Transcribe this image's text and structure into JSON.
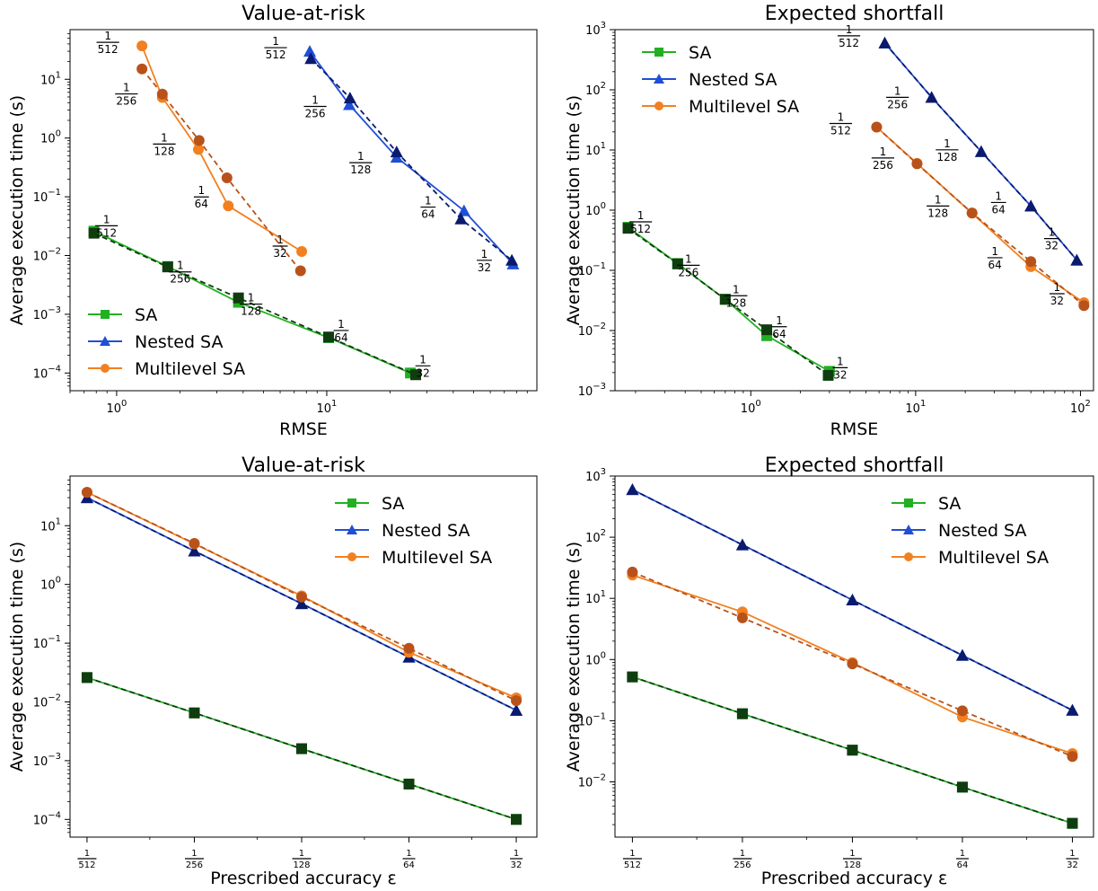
{
  "colors": {
    "SA": "#22b022",
    "SA_dark": "#0f3d0f",
    "Nested": "#1f4fd6",
    "Nested_dark": "#0a1a6e",
    "Multilevel": "#f28020",
    "Multilevel_dark": "#b8521a"
  },
  "chart_data": [
    {
      "type": "scatter",
      "title": "Value-at-risk",
      "xlabel": "RMSE",
      "ylabel": "Average execution time (s)",
      "xscale": "log",
      "yscale": "log",
      "xlim": [
        0.6,
        100
      ],
      "ylim": [
        5e-05,
        70
      ],
      "xticks": [
        {
          "v": 1,
          "label": "10",
          "exp": "0"
        },
        {
          "v": 10,
          "label": "10",
          "exp": "1"
        }
      ],
      "yticks": [
        {
          "v": 0.0001,
          "label": "10",
          "exp": "−4"
        },
        {
          "v": 0.001,
          "label": "10",
          "exp": "−3"
        },
        {
          "v": 0.01,
          "label": "10",
          "exp": "−2"
        },
        {
          "v": 0.1,
          "label": "10",
          "exp": "−1"
        },
        {
          "v": 1,
          "label": "10",
          "exp": "0"
        },
        {
          "v": 10,
          "label": "10",
          "exp": "1"
        }
      ],
      "legend": {
        "position": "lower-left",
        "entries": [
          "SA",
          "Nested SA",
          "Multilevel SA"
        ]
      },
      "series": [
        {
          "name": "SA",
          "color_key": "SA",
          "marker": "square",
          "dashed": false,
          "x": [
            0.78,
            1.75,
            3.8,
            10.2,
            25
          ],
          "y": [
            0.026,
            0.0065,
            0.0016,
            0.0004,
            0.0001
          ]
        },
        {
          "color_key": "SA_dark",
          "marker": "square",
          "dashed": true,
          "x": [
            0.78,
            1.75,
            3.8,
            10.2,
            26.5
          ],
          "y": [
            0.024,
            0.0064,
            0.0019,
            0.00041,
            9.34e-05
          ]
        },
        {
          "name": "Nested SA",
          "color_key": "Nested",
          "marker": "triangle",
          "dashed": false,
          "x": [
            8.3,
            12.8,
            21.5,
            45,
            77
          ],
          "y": [
            30,
            3.7,
            0.47,
            0.058,
            0.0072
          ]
        },
        {
          "color_key": "Nested_dark",
          "marker": "triangle",
          "dashed": true,
          "x": [
            8.4,
            12.9,
            21.5,
            43.5,
            76
          ],
          "y": [
            22.5,
            4.8,
            0.58,
            0.042,
            0.0083
          ]
        },
        {
          "name": "Multilevel SA",
          "color_key": "Multilevel",
          "marker": "circle",
          "dashed": false,
          "x": [
            1.32,
            1.65,
            2.45,
            3.4,
            7.6
          ],
          "y": [
            37,
            4.9,
            0.64,
            0.07,
            0.0117
          ]
        },
        {
          "color_key": "Multilevel_dark",
          "marker": "circle",
          "dashed": true,
          "x": [
            1.32,
            1.65,
            2.47,
            3.35,
            7.5
          ],
          "y": [
            15,
            5.6,
            0.91,
            0.21,
            0.0055
          ]
        }
      ],
      "annotations": [
        {
          "text": "512",
          "x": 0.78,
          "y": 0.026,
          "dx": 14,
          "dy": -6
        },
        {
          "text": "256",
          "x": 1.75,
          "y": 0.0065,
          "dx": 14,
          "dy": 6
        },
        {
          "text": "128",
          "x": 3.8,
          "y": 0.0016,
          "dx": 14,
          "dy": 2
        },
        {
          "text": "64",
          "x": 10.2,
          "y": 0.0004,
          "dx": 14,
          "dy": -8
        },
        {
          "text": "32",
          "x": 25,
          "y": 0.0001,
          "dx": 14,
          "dy": -8
        },
        {
          "text": "512",
          "x": 8.3,
          "y": 30,
          "dx": -38,
          "dy": -4
        },
        {
          "text": "256",
          "x": 12.8,
          "y": 3.7,
          "dx": -38,
          "dy": 2
        },
        {
          "text": "128",
          "x": 21.5,
          "y": 0.47,
          "dx": -40,
          "dy": 6
        },
        {
          "text": "64",
          "x": 45,
          "y": 0.058,
          "dx": -40,
          "dy": -4
        },
        {
          "text": "32",
          "x": 77,
          "y": 0.0072,
          "dx": -32,
          "dy": -4
        },
        {
          "text": "512",
          "x": 1.32,
          "y": 37,
          "dx": -38,
          "dy": -4
        },
        {
          "text": "256",
          "x": 1.65,
          "y": 4.9,
          "dx": -40,
          "dy": -4
        },
        {
          "text": "128",
          "x": 2.45,
          "y": 0.64,
          "dx": -38,
          "dy": -6
        },
        {
          "text": "64",
          "x": 3.4,
          "y": 0.07,
          "dx": -30,
          "dy": -10
        },
        {
          "text": "32",
          "x": 7.6,
          "y": 0.0117,
          "dx": -24,
          "dy": -6
        }
      ]
    },
    {
      "type": "scatter",
      "title": "Expected shortfall",
      "xlabel": "RMSE",
      "ylabel": "Average execution time (s)",
      "xscale": "log",
      "yscale": "log",
      "xlim": [
        0.15,
        120
      ],
      "ylim": [
        0.001,
        1000
      ],
      "xticks": [
        {
          "v": 1,
          "label": "10",
          "exp": "0"
        },
        {
          "v": 10,
          "label": "10",
          "exp": "1"
        },
        {
          "v": 100,
          "label": "10",
          "exp": "2"
        }
      ],
      "yticks": [
        {
          "v": 0.001,
          "label": "10",
          "exp": "−3"
        },
        {
          "v": 0.01,
          "label": "10",
          "exp": "−2"
        },
        {
          "v": 0.1,
          "label": "10",
          "exp": "−1"
        },
        {
          "v": 1,
          "label": "10",
          "exp": "0"
        },
        {
          "v": 10,
          "label": "10",
          "exp": "1"
        },
        {
          "v": 100,
          "label": "10",
          "exp": "2"
        },
        {
          "v": 1000,
          "label": "10",
          "exp": "3"
        }
      ],
      "legend": {
        "position": "top-left",
        "entries": [
          "SA",
          "Nested SA",
          "Multilevel SA"
        ]
      },
      "series": [
        {
          "name": "SA",
          "color_key": "SA",
          "marker": "square",
          "dashed": false,
          "x": [
            0.18,
            0.36,
            0.7,
            1.25,
            3.0
          ],
          "y": [
            0.52,
            0.13,
            0.033,
            0.0082,
            0.0021
          ]
        },
        {
          "color_key": "SA_dark",
          "marker": "square",
          "dashed": true,
          "x": [
            0.18,
            0.36,
            0.7,
            1.25,
            2.95
          ],
          "y": [
            0.5,
            0.128,
            0.033,
            0.0103,
            0.0018
          ]
        },
        {
          "name": "Nested SA",
          "color_key": "Nested",
          "marker": "triangle",
          "dashed": false,
          "x": [
            6.5,
            12.5,
            25,
            50,
            95
          ],
          "y": [
            600,
            75,
            9.4,
            1.17,
            0.148
          ]
        },
        {
          "color_key": "Nested_dark",
          "marker": "triangle",
          "dashed": true,
          "x": [
            6.5,
            12.5,
            25,
            50,
            95
          ],
          "y": [
            600,
            75,
            9.4,
            1.17,
            0.148
          ]
        },
        {
          "name": "Multilevel SA",
          "color_key": "Multilevel",
          "marker": "circle",
          "dashed": false,
          "x": [
            5.8,
            10.2,
            22,
            50,
            105
          ],
          "y": [
            24,
            6.0,
            0.89,
            0.115,
            0.029
          ]
        },
        {
          "color_key": "Multilevel_dark",
          "marker": "circle",
          "dashed": true,
          "x": [
            5.8,
            10.2,
            22,
            50,
            105
          ],
          "y": [
            24,
            5.9,
            0.9,
            0.14,
            0.026
          ]
        }
      ],
      "annotations": [
        {
          "text": "512",
          "x": 0.18,
          "y": 0.52,
          "dx": 14,
          "dy": -6
        },
        {
          "text": "256",
          "x": 0.36,
          "y": 0.13,
          "dx": 12,
          "dy": 2
        },
        {
          "text": "128",
          "x": 0.7,
          "y": 0.033,
          "dx": 12,
          "dy": -4
        },
        {
          "text": "64",
          "x": 1.25,
          "y": 0.0082,
          "dx": 14,
          "dy": -10
        },
        {
          "text": "32",
          "x": 3.0,
          "y": 0.0021,
          "dx": 12,
          "dy": -4
        },
        {
          "text": "512",
          "x": 6.5,
          "y": 600,
          "dx": -40,
          "dy": -8
        },
        {
          "text": "256",
          "x": 12.5,
          "y": 75,
          "dx": -38,
          "dy": 0
        },
        {
          "text": "128",
          "x": 25,
          "y": 9.4,
          "dx": -38,
          "dy": -2
        },
        {
          "text": "64",
          "x": 50,
          "y": 1.17,
          "dx": -36,
          "dy": -4
        },
        {
          "text": "32",
          "x": 95,
          "y": 0.148,
          "dx": -28,
          "dy": -24
        },
        {
          "text": "512",
          "x": 5.8,
          "y": 24,
          "dx": -40,
          "dy": -4
        },
        {
          "text": "256",
          "x": 10.2,
          "y": 6.0,
          "dx": -38,
          "dy": -6
        },
        {
          "text": "128",
          "x": 22,
          "y": 0.89,
          "dx": -38,
          "dy": -8
        },
        {
          "text": "64",
          "x": 50,
          "y": 0.115,
          "dx": -40,
          "dy": -10
        },
        {
          "text": "32",
          "x": 105,
          "y": 0.029,
          "dx": -30,
          "dy": -10
        }
      ]
    },
    {
      "type": "line",
      "title": "Value-at-risk",
      "xlabel": "Prescribed accuracy ε",
      "ylabel": "Average execution time (s)",
      "xscale": "log2",
      "yscale": "log",
      "xlim": [
        0.00175,
        0.0357
      ],
      "ylim": [
        5e-05,
        70
      ],
      "xticks": [
        {
          "v": 0.001953125,
          "label": "512"
        },
        {
          "v": 0.00390625,
          "label": "256"
        },
        {
          "v": 0.0078125,
          "label": "128"
        },
        {
          "v": 0.015625,
          "label": "64"
        },
        {
          "v": 0.03125,
          "label": "32"
        }
      ],
      "yticks": [
        {
          "v": 0.0001,
          "label": "10",
          "exp": "−4"
        },
        {
          "v": 0.001,
          "label": "10",
          "exp": "−3"
        },
        {
          "v": 0.01,
          "label": "10",
          "exp": "−2"
        },
        {
          "v": 0.1,
          "label": "10",
          "exp": "−1"
        },
        {
          "v": 1,
          "label": "10",
          "exp": "0"
        },
        {
          "v": 10,
          "label": "10",
          "exp": "1"
        }
      ],
      "legend": {
        "position": "top-right",
        "entries": [
          "SA",
          "Nested SA",
          "Multilevel SA"
        ]
      },
      "series": [
        {
          "name": "SA",
          "color_key": "SA",
          "marker": "square",
          "dashed": false,
          "x": [
            0.001953125,
            0.00390625,
            0.0078125,
            0.015625,
            0.03125
          ],
          "y": [
            0.026,
            0.0065,
            0.0016,
            0.0004,
            0.0001
          ]
        },
        {
          "color_key": "SA_dark",
          "marker": "square",
          "dashed": true,
          "x": [
            0.001953125,
            0.00390625,
            0.0078125,
            0.015625,
            0.03125
          ],
          "y": [
            0.026,
            0.0065,
            0.0016,
            0.0004,
            0.0001
          ]
        },
        {
          "name": "Nested SA",
          "color_key": "Nested",
          "marker": "triangle",
          "dashed": false,
          "x": [
            0.001953125,
            0.00390625,
            0.0078125,
            0.015625,
            0.03125
          ],
          "y": [
            30,
            3.7,
            0.47,
            0.058,
            0.0072
          ]
        },
        {
          "color_key": "Nested_dark",
          "marker": "triangle",
          "dashed": true,
          "x": [
            0.001953125,
            0.00390625,
            0.0078125,
            0.015625,
            0.03125
          ],
          "y": [
            30,
            3.7,
            0.47,
            0.058,
            0.0072
          ]
        },
        {
          "name": "Multilevel SA",
          "color_key": "Multilevel",
          "marker": "circle",
          "dashed": false,
          "x": [
            0.001953125,
            0.00390625,
            0.0078125,
            0.015625,
            0.03125
          ],
          "y": [
            37,
            4.9,
            0.64,
            0.07,
            0.0117
          ]
        },
        {
          "color_key": "Multilevel_dark",
          "marker": "circle",
          "dashed": true,
          "x": [
            0.001953125,
            0.00390625,
            0.0078125,
            0.015625,
            0.03125
          ],
          "y": [
            37,
            5.0,
            0.61,
            0.082,
            0.0105
          ]
        }
      ],
      "annotations": []
    },
    {
      "type": "line",
      "title": "Expected shortfall",
      "xlabel": "Prescribed accuracy ε",
      "ylabel": "Average execution time (s)",
      "xscale": "log2",
      "yscale": "log",
      "xlim": [
        0.00175,
        0.0357
      ],
      "ylim": [
        0.00125,
        1000
      ],
      "xticks": [
        {
          "v": 0.001953125,
          "label": "512"
        },
        {
          "v": 0.00390625,
          "label": "256"
        },
        {
          "v": 0.0078125,
          "label": "128"
        },
        {
          "v": 0.015625,
          "label": "64"
        },
        {
          "v": 0.03125,
          "label": "32"
        }
      ],
      "yticks": [
        {
          "v": 0.01,
          "label": "10",
          "exp": "−2"
        },
        {
          "v": 0.1,
          "label": "10",
          "exp": "−1"
        },
        {
          "v": 1,
          "label": "10",
          "exp": "0"
        },
        {
          "v": 10,
          "label": "10",
          "exp": "1"
        },
        {
          "v": 100,
          "label": "10",
          "exp": "2"
        },
        {
          "v": 1000,
          "label": "10",
          "exp": "3"
        }
      ],
      "legend": {
        "position": "top-right",
        "entries": [
          "SA",
          "Nested SA",
          "Multilevel SA"
        ]
      },
      "series": [
        {
          "name": "SA",
          "color_key": "SA",
          "marker": "square",
          "dashed": false,
          "x": [
            0.001953125,
            0.00390625,
            0.0078125,
            0.015625,
            0.03125
          ],
          "y": [
            0.52,
            0.13,
            0.033,
            0.0082,
            0.0021
          ]
        },
        {
          "color_key": "SA_dark",
          "marker": "square",
          "dashed": true,
          "x": [
            0.001953125,
            0.00390625,
            0.0078125,
            0.015625,
            0.03125
          ],
          "y": [
            0.52,
            0.13,
            0.033,
            0.0082,
            0.0021
          ]
        },
        {
          "name": "Nested SA",
          "color_key": "Nested",
          "marker": "triangle",
          "dashed": false,
          "x": [
            0.001953125,
            0.00390625,
            0.0078125,
            0.015625,
            0.03125
          ],
          "y": [
            600,
            75,
            9.4,
            1.17,
            0.148
          ]
        },
        {
          "color_key": "Nested_dark",
          "marker": "triangle",
          "dashed": true,
          "x": [
            0.001953125,
            0.00390625,
            0.0078125,
            0.015625,
            0.03125
          ],
          "y": [
            600,
            75,
            9.4,
            1.17,
            0.148
          ]
        },
        {
          "name": "Multilevel SA",
          "color_key": "Multilevel",
          "marker": "circle",
          "dashed": false,
          "x": [
            0.001953125,
            0.00390625,
            0.0078125,
            0.015625,
            0.03125
          ],
          "y": [
            24,
            6.0,
            0.89,
            0.115,
            0.029
          ]
        },
        {
          "color_key": "Multilevel_dark",
          "marker": "circle",
          "dashed": true,
          "x": [
            0.001953125,
            0.00390625,
            0.0078125,
            0.015625,
            0.03125
          ],
          "y": [
            27,
            4.8,
            0.85,
            0.145,
            0.026
          ]
        }
      ],
      "annotations": []
    }
  ]
}
